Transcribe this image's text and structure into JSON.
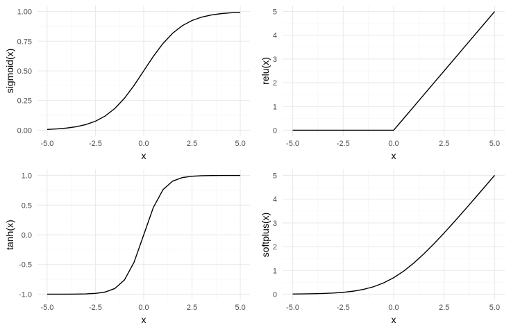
{
  "chart_data": [
    {
      "type": "line",
      "function": "sigmoid",
      "xlabel": "x",
      "ylabel": "sigmoid(x)",
      "xlim": [
        -5,
        5
      ],
      "ylim": [
        0,
        1
      ],
      "x_ticks": [
        -5,
        -2.5,
        0,
        2.5,
        5
      ],
      "x_tick_labels": [
        "-5.0",
        "-2.5",
        "0.0",
        "2.5",
        "5.0"
      ],
      "y_ticks": [
        0,
        0.25,
        0.5,
        0.75,
        1
      ],
      "y_tick_labels": [
        "0.00",
        "0.25",
        "0.50",
        "0.75",
        "1.00"
      ],
      "grid": true,
      "series": [
        {
          "x": [
            -5,
            -4.5,
            -4,
            -3.5,
            -3,
            -2.5,
            -2,
            -1.5,
            -1,
            -0.5,
            0,
            0.5,
            1,
            1.5,
            2,
            2.5,
            3,
            3.5,
            4,
            4.5,
            5
          ],
          "y": [
            0.0067,
            0.011,
            0.018,
            0.0293,
            0.0474,
            0.0759,
            0.1192,
            0.1824,
            0.2689,
            0.3775,
            0.5,
            0.6225,
            0.7311,
            0.8176,
            0.8808,
            0.9241,
            0.9526,
            0.9707,
            0.982,
            0.989,
            0.9933
          ]
        }
      ]
    },
    {
      "type": "line",
      "function": "relu",
      "xlabel": "x",
      "ylabel": "relu(x)",
      "xlim": [
        -5,
        5
      ],
      "ylim": [
        0,
        5
      ],
      "x_ticks": [
        -5,
        -2.5,
        0,
        2.5,
        5
      ],
      "x_tick_labels": [
        "-5.0",
        "-2.5",
        "0.0",
        "2.5",
        "5.0"
      ],
      "y_ticks": [
        0,
        1,
        2,
        3,
        4,
        5
      ],
      "y_tick_labels": [
        "0",
        "1",
        "2",
        "3",
        "4",
        "5"
      ],
      "grid": true,
      "series": [
        {
          "x": [
            -5,
            -4.5,
            -4,
            -3.5,
            -3,
            -2.5,
            -2,
            -1.5,
            -1,
            -0.5,
            0,
            0.5,
            1,
            1.5,
            2,
            2.5,
            3,
            3.5,
            4,
            4.5,
            5
          ],
          "y": [
            0,
            0,
            0,
            0,
            0,
            0,
            0,
            0,
            0,
            0,
            0,
            0.5,
            1,
            1.5,
            2,
            2.5,
            3,
            3.5,
            4,
            4.5,
            5
          ]
        }
      ]
    },
    {
      "type": "line",
      "function": "tanh",
      "xlabel": "x",
      "ylabel": "tanh(x)",
      "xlim": [
        -5,
        5
      ],
      "ylim": [
        -1,
        1
      ],
      "x_ticks": [
        -5,
        -2.5,
        0,
        2.5,
        5
      ],
      "x_tick_labels": [
        "-5.0",
        "-2.5",
        "0.0",
        "2.5",
        "5.0"
      ],
      "y_ticks": [
        -1,
        -0.5,
        0,
        0.5,
        1
      ],
      "y_tick_labels": [
        "-1.0",
        "-0.5",
        "0.0",
        "0.5",
        "1.0"
      ],
      "grid": true,
      "series": [
        {
          "x": [
            -5,
            -4.5,
            -4,
            -3.5,
            -3,
            -2.5,
            -2,
            -1.5,
            -1,
            -0.5,
            0,
            0.5,
            1,
            1.5,
            2,
            2.5,
            3,
            3.5,
            4,
            4.5,
            5
          ],
          "y": [
            -0.9999,
            -0.9998,
            -0.9993,
            -0.9982,
            -0.9951,
            -0.9866,
            -0.964,
            -0.9051,
            -0.7616,
            -0.4621,
            0,
            0.4621,
            0.7616,
            0.9051,
            0.964,
            0.9866,
            0.9951,
            0.9982,
            0.9993,
            0.9998,
            0.9999
          ]
        }
      ]
    },
    {
      "type": "line",
      "function": "softplus",
      "xlabel": "x",
      "ylabel": "softplus(x)",
      "xlim": [
        -5,
        5
      ],
      "ylim": [
        0,
        5
      ],
      "x_ticks": [
        -5,
        -2.5,
        0,
        2.5,
        5
      ],
      "x_tick_labels": [
        "-5.0",
        "-2.5",
        "0.0",
        "2.5",
        "5.0"
      ],
      "y_ticks": [
        0,
        1,
        2,
        3,
        4,
        5
      ],
      "y_tick_labels": [
        "0",
        "1",
        "2",
        "3",
        "4",
        "5"
      ],
      "grid": true,
      "series": [
        {
          "x": [
            -5,
            -4.5,
            -4,
            -3.5,
            -3,
            -2.5,
            -2,
            -1.5,
            -1,
            -0.5,
            0,
            0.5,
            1,
            1.5,
            2,
            2.5,
            3,
            3.5,
            4,
            4.5,
            5
          ],
          "y": [
            0.0067,
            0.0111,
            0.0181,
            0.0298,
            0.0486,
            0.0789,
            0.1269,
            0.2014,
            0.3133,
            0.4741,
            0.6931,
            0.9741,
            1.3133,
            1.7014,
            2.1269,
            2.5789,
            3.0486,
            3.5298,
            4.0181,
            4.5111,
            5.0067
          ]
        }
      ]
    }
  ],
  "colors": {
    "background": "#ffffff",
    "grid_major": "#ebebeb",
    "grid_minor": "#f4f4f4",
    "line": "#000000",
    "tick_text": "#4d4d4d",
    "title_text": "#000000"
  }
}
